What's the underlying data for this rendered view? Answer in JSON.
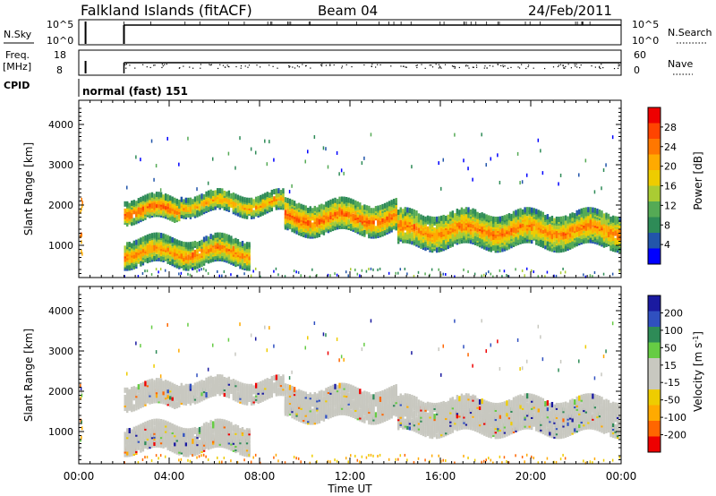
{
  "header": {
    "station": "Falkland Islands (fitACF)",
    "beam": "Beam 04",
    "date": "24/Feb/2011"
  },
  "top_panels": {
    "nsky_label": "N.Sky",
    "nsky_ticks": [
      "10^5",
      "10^0"
    ],
    "nsearch_label": "N.Search",
    "nsearch_ticks": [
      "10^5",
      "10^0"
    ],
    "freq_label": "Freq.",
    "freq_unit": "[MHz]",
    "freq_ticks": [
      "18",
      "8"
    ],
    "nave_label": "Nave",
    "nave_ticks": [
      "60",
      "0"
    ],
    "cpid_label": "CPID",
    "cpid_value": "normal (fast) 151"
  },
  "colors": {
    "power_scale": [
      "#0000ff",
      "#2255aa",
      "#2e8b57",
      "#55aa55",
      "#aacc33",
      "#eecc00",
      "#ffaa00",
      "#ff7700",
      "#ff4400",
      "#ee0000"
    ],
    "velocity_scale": [
      "#1a1aa0",
      "#3050c0",
      "#2e8b57",
      "#66cc44",
      "#c8c8c0",
      "#c8c8c0",
      "#eecc00",
      "#ffaa00",
      "#ff6600",
      "#ee0000"
    ]
  },
  "chart_data": [
    {
      "type": "heatmap",
      "name": "power",
      "ylabel": "Slant Range [km]",
      "yticks": [
        "1000",
        "2000",
        "3000",
        "4000"
      ],
      "ylim": [
        200,
        4600
      ],
      "xlim": [
        0,
        24
      ],
      "colorbar_label": "Power [dB]",
      "colorbar_ticks": [
        "4",
        "8",
        "12",
        "16",
        "20",
        "24",
        "28"
      ],
      "colorbar_range": [
        0,
        32
      ],
      "data_gap_hours": [
        0.3,
        2.0
      ],
      "echo_bands": [
        {
          "start": 2.0,
          "end": 7.5,
          "range_center": 850,
          "range_width": 300,
          "value": 24
        },
        {
          "start": 2.0,
          "end": 4.5,
          "range_center": 1900,
          "range_width": 250,
          "value": 27
        },
        {
          "start": 4.5,
          "end": 9.0,
          "range_center": 2050,
          "range_width": 220,
          "value": 22
        },
        {
          "start": 9.0,
          "end": 14.0,
          "range_center": 1700,
          "range_width": 350,
          "value": 26
        },
        {
          "start": 14.0,
          "end": 24.0,
          "range_center": 1400,
          "range_width": 400,
          "value": 24
        }
      ]
    },
    {
      "type": "heatmap",
      "name": "velocity",
      "ylabel": "Slant Range [km]",
      "yticks": [
        "1000",
        "2000",
        "3000",
        "4000"
      ],
      "ylim": [
        200,
        4600
      ],
      "xlim": [
        0,
        24
      ],
      "colorbar_label": "Velocity [m s",
      "colorbar_label_sup": "-1",
      "colorbar_label_end": "]",
      "colorbar_ticks": [
        "200",
        "100",
        "50",
        "15",
        "-15",
        "-50",
        "-100",
        "-200"
      ],
      "xticks": [
        "00:00",
        "04:00",
        "08:00",
        "12:00",
        "16:00",
        "20:00",
        "00:00"
      ],
      "xlabel": "Time UT"
    }
  ]
}
